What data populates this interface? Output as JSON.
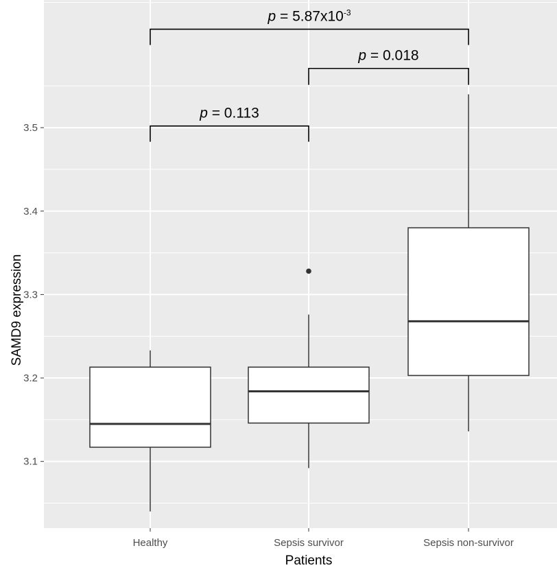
{
  "chart_data": {
    "type": "box",
    "xlabel": "Patients",
    "ylabel": "SAMD9 expression",
    "categories": [
      "Healthy",
      "Sepsis survivor",
      "Sepsis non-survivor"
    ],
    "ylim": [
      3.02,
      3.653
    ],
    "y_ticks": [
      {
        "value": 3.1,
        "label": "3.1"
      },
      {
        "value": 3.2,
        "label": "3.2"
      },
      {
        "value": 3.3,
        "label": "3.3"
      },
      {
        "value": 3.4,
        "label": "3.4"
      },
      {
        "value": 3.5,
        "label": "3.5"
      }
    ],
    "grid": true,
    "boxes": [
      {
        "category": "Healthy",
        "whisker_low": 3.04,
        "q1": 3.117,
        "median": 3.145,
        "q3": 3.213,
        "whisker_high": 3.233,
        "outliers": []
      },
      {
        "category": "Sepsis survivor",
        "whisker_low": 3.092,
        "q1": 3.146,
        "median": 3.184,
        "q3": 3.213,
        "whisker_high": 3.276,
        "outliers": [
          3.328
        ]
      },
      {
        "category": "Sepsis non-survivor",
        "whisker_low": 3.136,
        "q1": 3.203,
        "median": 3.268,
        "q3": 3.38,
        "whisker_high": 3.54,
        "outliers": []
      }
    ],
    "annotations": [
      {
        "from": 0,
        "to": 2,
        "y": 3.618,
        "p_symbol": "p",
        "text": " = 5.87x10",
        "sup": "-3"
      },
      {
        "from": 1,
        "to": 2,
        "y": 3.571,
        "p_symbol": "p",
        "text": " = 0.018",
        "sup": ""
      },
      {
        "from": 0,
        "to": 1,
        "y": 3.502,
        "p_symbol": "p",
        "text": " = 0.113",
        "sup": ""
      }
    ],
    "colors": {
      "panel": "#ebebeb",
      "grid": "#ffffff",
      "box_fill": "#ffffff",
      "line": "#333333",
      "text": "#4d4d4d"
    }
  }
}
